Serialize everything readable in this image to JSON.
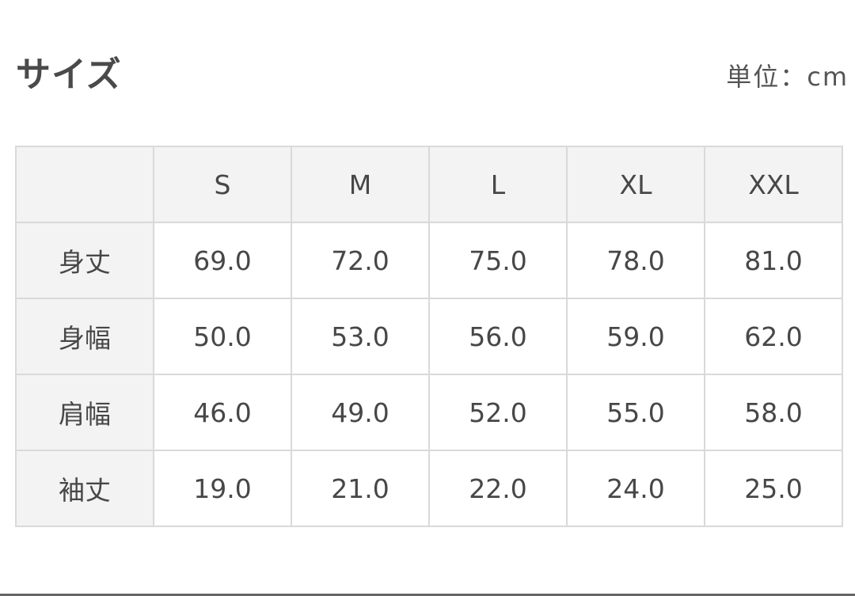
{
  "title": "サイズ",
  "unit": "単位：cm",
  "table": {
    "headers": [
      "",
      "S",
      "M",
      "L",
      "XL",
      "XXL"
    ],
    "rows": [
      {
        "label": "身丈",
        "values": [
          "69.0",
          "72.0",
          "75.0",
          "78.0",
          "81.0"
        ]
      },
      {
        "label": "身幅",
        "values": [
          "50.0",
          "53.0",
          "56.0",
          "59.0",
          "62.0"
        ]
      },
      {
        "label": "肩幅",
        "values": [
          "46.0",
          "49.0",
          "52.0",
          "55.0",
          "58.0"
        ]
      },
      {
        "label": "袖丈",
        "values": [
          "19.0",
          "21.0",
          "22.0",
          "24.0",
          "25.0"
        ]
      }
    ]
  }
}
